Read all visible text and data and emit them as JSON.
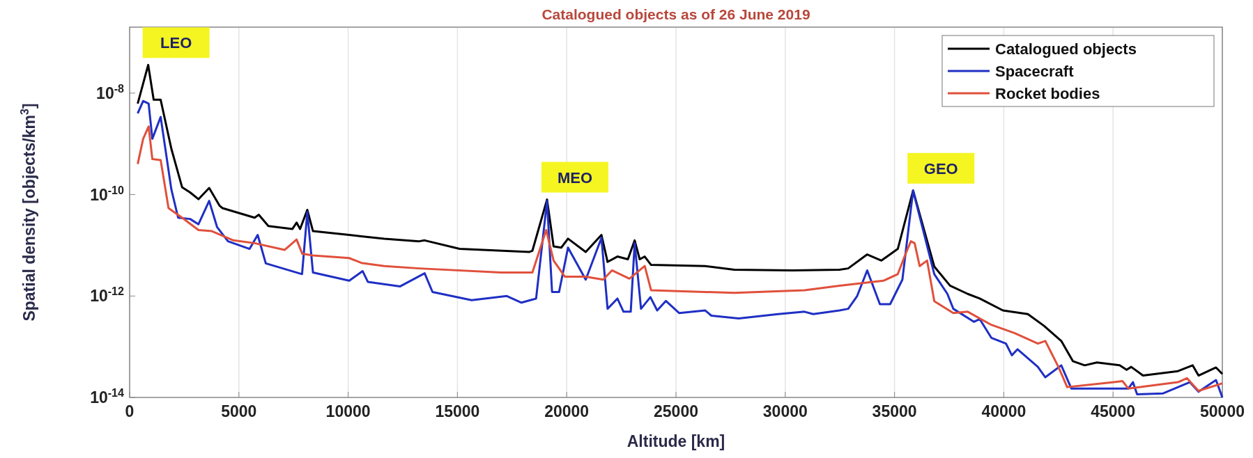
{
  "chart_data": {
    "type": "line",
    "title": "Catalogued objects as of 26 June 2019",
    "xlabel": "Altitude [km]",
    "ylabel": "Spatial density [objects/km$^{3}$]",
    "log": "y",
    "grid": "x",
    "legend": "top right",
    "line_style": "solid",
    "marker": "none",
    "xlim": [
      0,
      50000
    ],
    "xticks": [
      0,
      5000,
      10000,
      15000,
      20000,
      25000,
      30000,
      35000,
      40000,
      45000,
      50000
    ],
    "ylim": [
      1e-14,
      2e-07
    ],
    "yticks": [
      {
        "value": 1e-14,
        "label": "10$^{-14}$"
      },
      {
        "value": 1e-12,
        "label": "10$^{-12}$"
      },
      {
        "value": 1e-10,
        "label": "10$^{-10}$"
      },
      {
        "value": 1e-08,
        "label": "10$^{-8}$"
      }
    ],
    "annotations": [
      {
        "text": "LEO",
        "x": 850,
        "y": 3.6e-08
      },
      {
        "text": "MEO",
        "x": 19100,
        "y": 8e-11
      },
      {
        "text": "GEO",
        "x": 35850,
        "y": 1.2e-10
      }
    ],
    "series": [
      {
        "name": "Catalogued objects",
        "color": "#000000",
        "x": [
          370,
          850,
          1100,
          1420,
          1910,
          2400,
          2770,
          3150,
          3640,
          4120,
          4250,
          5720,
          5910,
          6350,
          7450,
          7640,
          7800,
          8130,
          8390,
          10050,
          10600,
          11650,
          13250,
          13500,
          15100,
          18300,
          18430,
          19100,
          19400,
          19750,
          20060,
          20870,
          21590,
          21870,
          22320,
          22800,
          23110,
          23340,
          23570,
          23860,
          26330,
          27670,
          30340,
          32480,
          32880,
          33750,
          34400,
          35150,
          35850,
          36820,
          37540,
          38350,
          38900,
          39960,
          41100,
          41830,
          42630,
          43160,
          43700,
          44260,
          45300,
          45620,
          45830,
          46370,
          47970,
          48640,
          48910,
          49710,
          50000
        ],
        "values": [
          6.2e-09,
          3.6e-08,
          7.4e-09,
          7.4e-09,
          8e-10,
          1.4e-10,
          1.1e-10,
          8.1e-11,
          1.35e-10,
          6e-11,
          5.4e-11,
          3.5e-11,
          4e-11,
          2.4e-11,
          2.1e-11,
          2.8e-11,
          2.1e-11,
          5e-11,
          1.9e-11,
          1.6e-11,
          1.5e-11,
          1.35e-11,
          1.2e-11,
          1.25e-11,
          8.5e-12,
          7.4e-12,
          7.8e-12,
          8e-11,
          9.5e-12,
          9e-12,
          1.35e-11,
          7.4e-12,
          1.6e-11,
          4.7e-12,
          6e-12,
          5.3e-12,
          1.25e-11,
          5.3e-12,
          6e-12,
          4.1e-12,
          3.9e-12,
          3.3e-12,
          3.2e-12,
          3.3e-12,
          3.5e-12,
          6.6e-12,
          5e-12,
          8.5e-12,
          1.2e-10,
          3.8e-12,
          1.6e-12,
          1.1e-12,
          8.9e-13,
          5.2e-13,
          4.4e-13,
          2.6e-13,
          1.3e-13,
          5.2e-14,
          4.3e-14,
          4.9e-14,
          4.3e-14,
          3.5e-14,
          4e-14,
          2.7e-14,
          3.3e-14,
          4.3e-14,
          2.7e-14,
          3.9e-14,
          2.9e-14
        ]
      },
      {
        "name": "Spacecraft",
        "color": "#1f2fc4",
        "x": [
          370,
          620,
          870,
          1040,
          1420,
          1910,
          2220,
          2770,
          3150,
          3640,
          4000,
          4500,
          5490,
          5860,
          6230,
          7890,
          8130,
          8390,
          10050,
          10660,
          10900,
          12380,
          13500,
          13860,
          15650,
          17260,
          17930,
          18600,
          19100,
          19330,
          19650,
          20060,
          20870,
          21590,
          21870,
          22320,
          22600,
          22930,
          23110,
          23400,
          23830,
          24140,
          24540,
          25150,
          26330,
          26620,
          27870,
          29680,
          30880,
          31280,
          32480,
          32880,
          33290,
          33750,
          34330,
          34800,
          35360,
          35850,
          36820,
          37420,
          37690,
          38630,
          38900,
          39430,
          40100,
          40370,
          40630,
          41560,
          41900,
          42630,
          43090,
          45700,
          45910,
          46100,
          47290,
          48510,
          48910,
          49710,
          50000
        ],
        "values": [
          4e-09,
          7e-09,
          6.2e-09,
          1.26e-09,
          3.4e-09,
          1.26e-10,
          3.5e-11,
          3.3e-11,
          2.6e-11,
          7.5e-11,
          2.3e-11,
          1.2e-11,
          8.5e-12,
          1.6e-11,
          4.4e-12,
          2.7e-12,
          4.5e-11,
          2.9e-12,
          2e-12,
          3.1e-12,
          1.9e-12,
          1.55e-12,
          2.8e-12,
          1.2e-12,
          8.3e-13,
          1e-12,
          7.4e-13,
          8.9e-13,
          7.5e-11,
          1.2e-12,
          1.2e-12,
          9e-12,
          2.1e-12,
          1.4e-11,
          5.6e-13,
          8.9e-13,
          4.9e-13,
          4.9e-13,
          1.1e-11,
          5.6e-13,
          9.5e-13,
          5.2e-13,
          8e-13,
          4.6e-13,
          5.2e-13,
          4.1e-13,
          3.6e-13,
          4.4e-13,
          4.9e-13,
          4.4e-13,
          5.2e-13,
          5.6e-13,
          1e-12,
          3.2e-12,
          6.9e-13,
          6.9e-13,
          2.1e-12,
          1.2e-10,
          2.7e-12,
          1.1e-12,
          5.6e-13,
          3.1e-13,
          3.5e-13,
          1.5e-13,
          1.15e-13,
          6.8e-14,
          8.9e-14,
          4e-14,
          2.5e-14,
          4.3e-14,
          1.5e-14,
          1.5e-14,
          2e-14,
          1.15e-14,
          1.2e-14,
          2e-14,
          1.3e-14,
          2.2e-14,
          1e-14
        ]
      },
      {
        "name": "Rocket bodies",
        "color": "#e0503c",
        "x": [
          370,
          620,
          870,
          1040,
          1420,
          1780,
          2400,
          3150,
          3760,
          4750,
          5720,
          7090,
          7640,
          7900,
          8390,
          10050,
          10600,
          11650,
          13250,
          16990,
          18430,
          19060,
          19400,
          19920,
          20870,
          21670,
          22070,
          22870,
          23570,
          23860,
          27670,
          30880,
          32480,
          34490,
          35150,
          35490,
          35750,
          35920,
          36150,
          36490,
          36820,
          37690,
          38350,
          39430,
          40500,
          41560,
          41900,
          42500,
          42900,
          45040,
          45430,
          45700,
          47970,
          48380,
          48910,
          49840,
          50000
        ],
        "values": [
          4e-10,
          1.26e-09,
          2.2e-09,
          5e-10,
          4.8e-10,
          5.4e-11,
          3.5e-11,
          2e-11,
          1.9e-11,
          1.25e-11,
          1.1e-11,
          8.1e-12,
          1.3e-11,
          6.8e-12,
          6.3e-12,
          5.6e-12,
          4.5e-12,
          3.9e-12,
          3.5e-12,
          2.9e-12,
          2.9e-12,
          2e-11,
          5e-12,
          2.4e-12,
          2.4e-12,
          2.1e-12,
          3.2e-12,
          2.2e-12,
          3.9e-12,
          1.3e-12,
          1.15e-12,
          1.3e-12,
          1.6e-12,
          2e-12,
          2.7e-12,
          6.5e-12,
          1.2e-11,
          1.1e-11,
          3.9e-12,
          5e-12,
          7.9e-13,
          4.6e-13,
          4.9e-13,
          2.7e-13,
          1.85e-13,
          1.15e-13,
          1.3e-13,
          4e-14,
          1.6e-14,
          2e-14,
          2.1e-14,
          1.5e-14,
          2e-14,
          2.4e-14,
          1.35e-14,
          1.8e-14,
          1.9e-14
        ]
      }
    ]
  }
}
